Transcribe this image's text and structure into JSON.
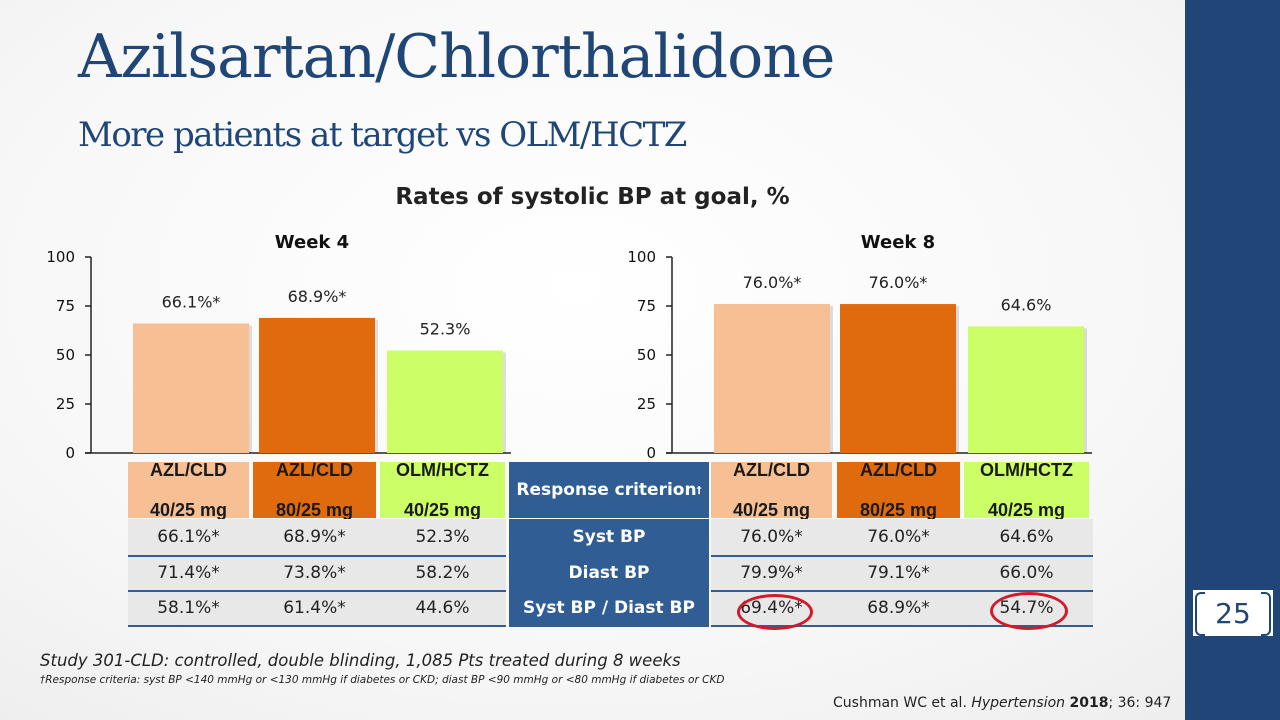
{
  "slide": {
    "title": "Azilsartan/Chlorthalidone",
    "subtitle": "More patients at target vs OLM/HCTZ",
    "chart_heading": "Rates of systolic BP at goal, %",
    "page_number": "25",
    "colors": {
      "sidebar": "#1f4677",
      "title": "#1f4677",
      "azl40": "#f7bf94",
      "azl80": "#e06a0e",
      "olm": "#ccff66",
      "criterion": "#2f5d94",
      "highlight": "#d11a2a"
    }
  },
  "chart_data": [
    {
      "type": "bar",
      "title": "Week 4",
      "categories": [
        "AZL/CLD 40/25 mg",
        "AZL/CLD 80/25 mg",
        "OLM/HCTZ 40/25 mg"
      ],
      "values": [
        66.1,
        68.9,
        52.3
      ],
      "data_labels": [
        "66.1%*",
        "68.9%*",
        "52.3%"
      ],
      "ylim": [
        0,
        100
      ],
      "yticks": [
        "0",
        "25",
        "50",
        "75",
        "100"
      ],
      "colors": [
        "#f7bf94",
        "#e06a0e",
        "#ccff66"
      ]
    },
    {
      "type": "bar",
      "title": "Week 8",
      "categories": [
        "AZL/CLD 40/25 mg",
        "AZL/CLD 80/25 mg",
        "OLM/HCTZ 40/25 mg"
      ],
      "values": [
        76.0,
        76.0,
        64.6
      ],
      "data_labels": [
        "76.0%*",
        "76.0%*",
        "64.6%"
      ],
      "ylim": [
        0,
        100
      ],
      "yticks": [
        "0",
        "25",
        "50",
        "75",
        "100"
      ],
      "colors": [
        "#f7bf94",
        "#e06a0e",
        "#ccff66"
      ]
    }
  ],
  "table": {
    "header": {
      "left": [
        [
          "AZL/CLD",
          "40/25 mg"
        ],
        [
          "AZL/CLD",
          "80/25 mg"
        ],
        [
          "OLM/HCTZ",
          "40/25 mg"
        ]
      ],
      "criterion": "Response criterion",
      "criterion_mark": "†",
      "right": [
        [
          "AZL/CLD",
          "40/25 mg"
        ],
        [
          "AZL/CLD",
          "80/25 mg"
        ],
        [
          "OLM/HCTZ",
          "40/25 mg"
        ]
      ]
    },
    "rows": [
      {
        "left": [
          "66.1%*",
          "68.9%*",
          "52.3%"
        ],
        "criterion": "Syst BP",
        "right": [
          "76.0%*",
          "76.0%*",
          "64.6%"
        ]
      },
      {
        "left": [
          "71.4%*",
          "73.8%*",
          "58.2%"
        ],
        "criterion": "Diast BP",
        "right": [
          "79.9%*",
          "79.1%*",
          "66.0%"
        ]
      },
      {
        "left": [
          "58.1%*",
          "61.4%*",
          "44.6%"
        ],
        "criterion": "Syst BP / Diast BP",
        "right": [
          "69.4%*",
          "68.9%*",
          "54.7%"
        ]
      }
    ]
  },
  "footer": {
    "study": "Study 301-CLD: controlled, double blinding, 1,085 Pts treated during 8 weeks",
    "footnote": "†Response criteria: syst BP <140 mmHg or <130 mmHg if diabetes or CKD; diast BP <90 mmHg or <80 mmHg if diabetes or CKD",
    "ref_authors": "Cushman WC et al. ",
    "ref_journal": "Hypertension",
    "ref_year": "2018",
    "ref_rest": "; 36: 947"
  }
}
